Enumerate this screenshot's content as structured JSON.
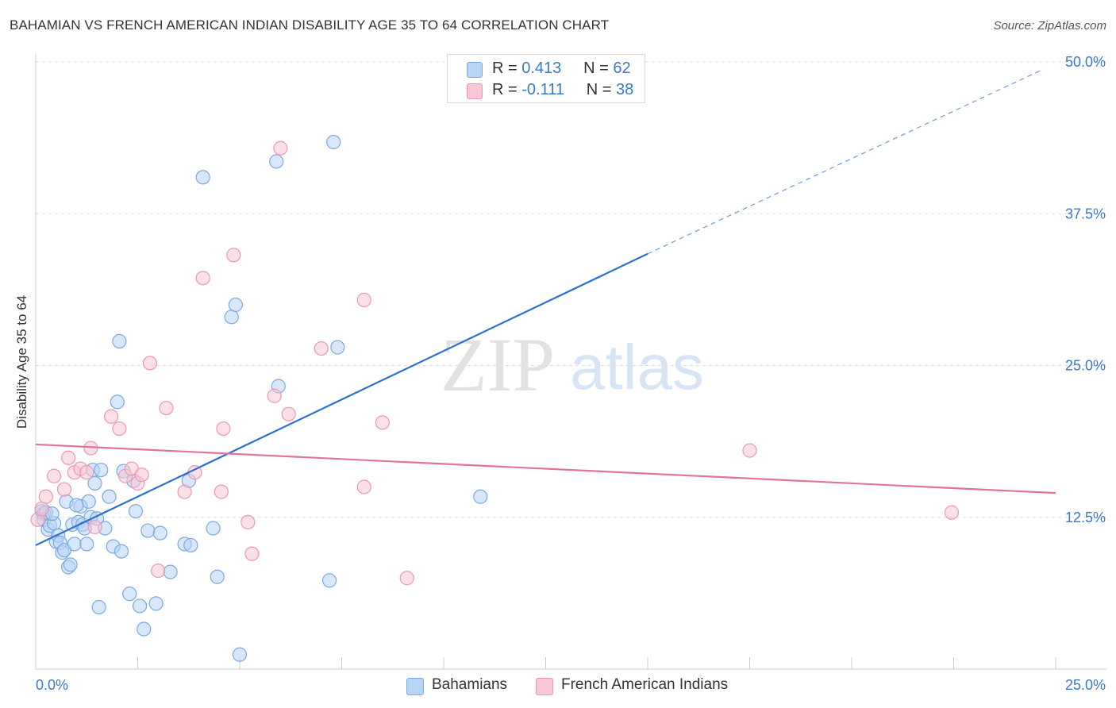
{
  "title": "BAHAMIAN VS FRENCH AMERICAN INDIAN DISABILITY AGE 35 TO 64 CORRELATION CHART",
  "source": "Source: ZipAtlas.com",
  "watermark": {
    "zip": "ZIP",
    "atlas": "atlas"
  },
  "legend": {
    "r_label": "R =",
    "n_label": "N =",
    "series": [
      {
        "name": "Bahamians",
        "r": "0.413",
        "n": "62"
      },
      {
        "name": "French American Indians",
        "r": "-0.111",
        "n": "38"
      }
    ]
  },
  "colors": {
    "blue_fill": "#b8d4f5",
    "blue_stroke": "#7aa9e0",
    "blue_line": "#2b6fcf",
    "pink_fill": "#f8c6d6",
    "pink_stroke": "#ec96b4",
    "pink_line": "#e2739b",
    "tick_text": "#3a78c9",
    "grid": "#dddddd"
  },
  "chart_data": {
    "type": "scatter",
    "title": "BAHAMIAN VS FRENCH AMERICAN INDIAN DISABILITY AGE 35 TO 64 CORRELATION CHART",
    "xlabel": "",
    "ylabel": "Disability Age 35 to 64",
    "xlim": [
      0,
      25
    ],
    "ylim": [
      0,
      50
    ],
    "x_tick_labels": [
      "0.0%",
      "25.0%"
    ],
    "y_ticks": [
      12.5,
      25.0,
      37.5,
      50.0
    ],
    "y_tick_labels": [
      "12.5%",
      "25.0%",
      "37.5%",
      "50.0%"
    ],
    "series": [
      {
        "name": "Bahamians",
        "color": "blue",
        "points": [
          [
            0.15,
            13.0
          ],
          [
            0.2,
            12.8
          ],
          [
            0.2,
            12.3
          ],
          [
            0.25,
            12.9
          ],
          [
            0.3,
            11.5
          ],
          [
            0.35,
            11.8
          ],
          [
            0.45,
            12.0
          ],
          [
            0.5,
            10.5
          ],
          [
            0.55,
            11.0
          ],
          [
            0.6,
            10.4
          ],
          [
            0.65,
            9.6
          ],
          [
            0.7,
            9.8
          ],
          [
            0.75,
            13.8
          ],
          [
            0.8,
            8.4
          ],
          [
            0.85,
            8.6
          ],
          [
            0.9,
            11.9
          ],
          [
            0.95,
            10.3
          ],
          [
            1.05,
            12.1
          ],
          [
            1.1,
            13.4
          ],
          [
            1.15,
            11.9
          ],
          [
            1.2,
            11.6
          ],
          [
            1.25,
            10.3
          ],
          [
            1.3,
            13.8
          ],
          [
            1.35,
            12.5
          ],
          [
            1.4,
            16.4
          ],
          [
            1.45,
            15.3
          ],
          [
            1.5,
            12.4
          ],
          [
            1.55,
            5.1
          ],
          [
            1.6,
            16.4
          ],
          [
            1.7,
            11.6
          ],
          [
            1.8,
            14.2
          ],
          [
            1.9,
            10.1
          ],
          [
            2.0,
            22.0
          ],
          [
            2.05,
            27.0
          ],
          [
            2.1,
            9.7
          ],
          [
            2.15,
            16.3
          ],
          [
            2.3,
            6.2
          ],
          [
            2.4,
            15.5
          ],
          [
            2.45,
            13.0
          ],
          [
            2.55,
            5.2
          ],
          [
            2.65,
            3.3
          ],
          [
            2.75,
            11.4
          ],
          [
            2.95,
            5.4
          ],
          [
            3.05,
            11.2
          ],
          [
            3.3,
            8.0
          ],
          [
            3.65,
            10.3
          ],
          [
            3.8,
            10.2
          ],
          [
            3.75,
            15.5
          ],
          [
            4.1,
            40.5
          ],
          [
            4.35,
            11.6
          ],
          [
            4.45,
            7.6
          ],
          [
            4.8,
            29.0
          ],
          [
            4.9,
            30.0
          ],
          [
            5.0,
            1.2
          ],
          [
            5.9,
            41.8
          ],
          [
            5.95,
            23.3
          ],
          [
            7.2,
            7.3
          ],
          [
            7.3,
            43.4
          ],
          [
            7.4,
            26.5
          ],
          [
            10.9,
            14.2
          ],
          [
            0.4,
            12.8
          ],
          [
            1.0,
            13.5
          ]
        ]
      },
      {
        "name": "French American Indians",
        "color": "pink",
        "points": [
          [
            0.05,
            12.3
          ],
          [
            0.15,
            13.2
          ],
          [
            0.25,
            14.2
          ],
          [
            0.45,
            15.9
          ],
          [
            0.7,
            14.8
          ],
          [
            0.8,
            17.4
          ],
          [
            0.95,
            16.2
          ],
          [
            1.1,
            16.5
          ],
          [
            1.25,
            16.2
          ],
          [
            1.35,
            18.2
          ],
          [
            1.45,
            11.7
          ],
          [
            1.85,
            20.8
          ],
          [
            2.05,
            19.8
          ],
          [
            2.2,
            15.9
          ],
          [
            2.35,
            16.5
          ],
          [
            2.5,
            15.3
          ],
          [
            2.6,
            16.0
          ],
          [
            2.8,
            25.2
          ],
          [
            3.0,
            8.1
          ],
          [
            3.2,
            21.5
          ],
          [
            3.65,
            14.6
          ],
          [
            3.9,
            16.2
          ],
          [
            4.1,
            32.2
          ],
          [
            4.55,
            14.6
          ],
          [
            4.6,
            19.8
          ],
          [
            4.85,
            34.1
          ],
          [
            5.2,
            12.1
          ],
          [
            5.3,
            9.5
          ],
          [
            5.85,
            22.5
          ],
          [
            6.0,
            42.9
          ],
          [
            6.2,
            21.0
          ],
          [
            7.0,
            26.4
          ],
          [
            8.05,
            30.4
          ],
          [
            8.05,
            15.0
          ],
          [
            8.5,
            20.3
          ],
          [
            9.1,
            7.5
          ],
          [
            17.5,
            18.0
          ],
          [
            22.45,
            12.9
          ]
        ]
      }
    ],
    "trend_lines": [
      {
        "series": "Bahamians",
        "x": [
          0,
          15
        ],
        "y": [
          10.2,
          34.2
        ],
        "dashed_extension_to": [
          24.7,
          49.4
        ]
      },
      {
        "series": "French American Indians",
        "x": [
          0,
          25
        ],
        "y": [
          18.5,
          14.5
        ]
      }
    ]
  }
}
